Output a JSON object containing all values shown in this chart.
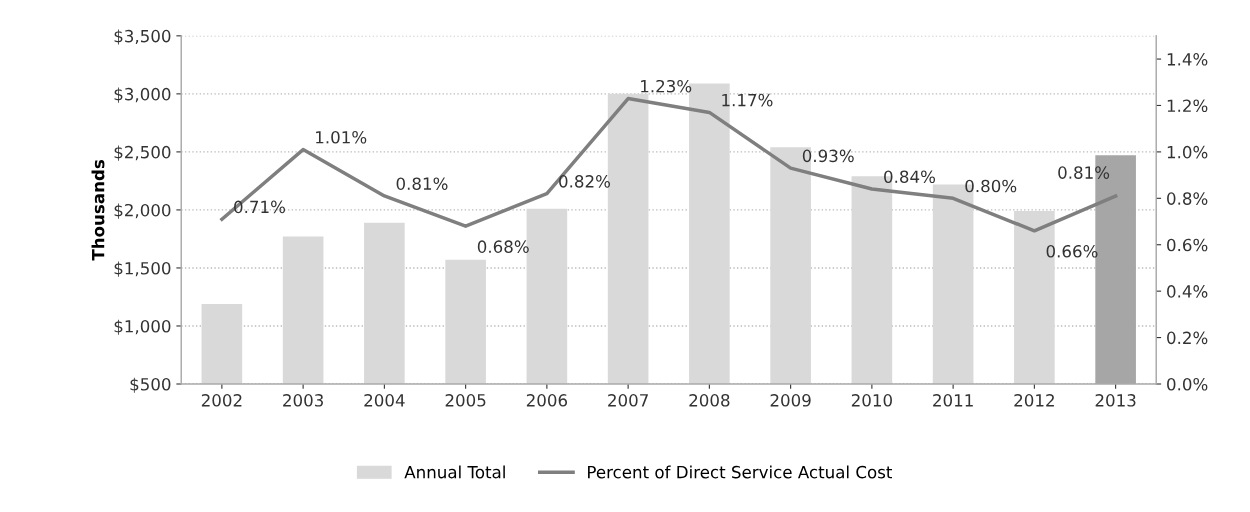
{
  "chart_data": {
    "type": "bar",
    "ylabel": "Thousands",
    "categories": [
      "2002",
      "2003",
      "2004",
      "2005",
      "2006",
      "2007",
      "2008",
      "2009",
      "2010",
      "2011",
      "2012",
      "2013"
    ],
    "series": [
      {
        "name": "Annual Total",
        "colors": [
          "#d9d9d9",
          "#d9d9d9",
          "#d9d9d9",
          "#d9d9d9",
          "#d9d9d9",
          "#d9d9d9",
          "#d9d9d9",
          "#d9d9d9",
          "#d9d9d9",
          "#d9d9d9",
          "#d9d9d9",
          "#a6a6a6"
        ],
        "values": [
          1190,
          1770,
          1890,
          1570,
          2010,
          3000,
          3090,
          2540,
          2290,
          2220,
          1990,
          2470
        ]
      },
      {
        "name": "Percent of Direct Service Actual Cost",
        "type": "line",
        "axis": "y2",
        "color": "#7f7f7f",
        "values": [
          0.71,
          1.01,
          0.81,
          0.68,
          0.82,
          1.23,
          1.17,
          0.93,
          0.84,
          0.8,
          0.66,
          0.81
        ],
        "value_labels": [
          "0.71%",
          "1.01%",
          "0.81%",
          "0.68%",
          "0.82%",
          "1.23%",
          "1.17%",
          "0.93%",
          "0.84%",
          "0.80%",
          "0.66%",
          "0.81%"
        ]
      }
    ],
    "ylim": [
      500,
      3500
    ],
    "yticks": [
      {
        "value": 500,
        "label": "$500"
      },
      {
        "value": 1000,
        "label": "$1,000"
      },
      {
        "value": 1500,
        "label": "$1,500"
      },
      {
        "value": 2000,
        "label": "$2,000"
      },
      {
        "value": 2500,
        "label": "$2,500"
      },
      {
        "value": 3000,
        "label": "$3,000"
      },
      {
        "value": 3500,
        "label": "$3,500"
      }
    ],
    "y2lim": [
      0,
      1.5
    ],
    "y2ticks": [
      {
        "value": 0,
        "label": "0.0%"
      },
      {
        "value": 0.2,
        "label": "0.2%"
      },
      {
        "value": 0.4,
        "label": "0.4%"
      },
      {
        "value": 0.6,
        "label": "0.6%"
      },
      {
        "value": 0.8,
        "label": "0.8%"
      },
      {
        "value": 1.0,
        "label": "1.0%"
      },
      {
        "value": 1.2,
        "label": "1.2%"
      },
      {
        "value": 1.4,
        "label": "1.4%"
      }
    ],
    "grid": "y",
    "legend": "bottom"
  }
}
